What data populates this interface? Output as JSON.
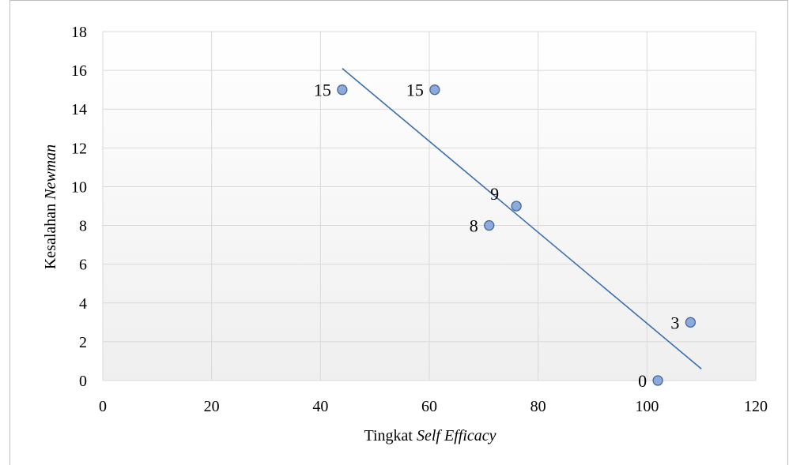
{
  "chart_data": {
    "type": "scatter",
    "title": "",
    "xlabel_plain": "Tingkat",
    "xlabel_italic": "Self Efficacy",
    "ylabel_plain": "Kesalahan",
    "ylabel_italic": "Newman",
    "xlim": [
      0,
      120
    ],
    "ylim": [
      0,
      18
    ],
    "xticks": [
      0,
      20,
      40,
      60,
      80,
      100,
      120
    ],
    "yticks": [
      0,
      2,
      4,
      6,
      8,
      10,
      12,
      14,
      16,
      18
    ],
    "grid": true,
    "legend": "none",
    "points": [
      {
        "x": 44,
        "y": 15,
        "label": "15",
        "label_side": "left"
      },
      {
        "x": 61,
        "y": 15,
        "label": "15",
        "label_side": "left"
      },
      {
        "x": 71,
        "y": 8,
        "label": "8",
        "label_side": "left"
      },
      {
        "x": 76,
        "y": 9,
        "label": "9",
        "label_side": "above-left"
      },
      {
        "x": 102,
        "y": 0,
        "label": "0",
        "label_side": "left"
      },
      {
        "x": 108,
        "y": 3,
        "label": "3",
        "label_side": "left"
      }
    ],
    "trendline": {
      "x": [
        44,
        110
      ],
      "y": [
        16.1,
        0.6
      ]
    },
    "colors": {
      "marker_fill": "#8EA9DB",
      "marker_stroke": "#41689C",
      "trendline": "#3C6EAD",
      "grid": "#D9D9D9",
      "plot_bg_top": "#FFFFFF",
      "plot_bg_bottom": "#EFEFEF",
      "page_border": "#BFBFBF"
    }
  }
}
